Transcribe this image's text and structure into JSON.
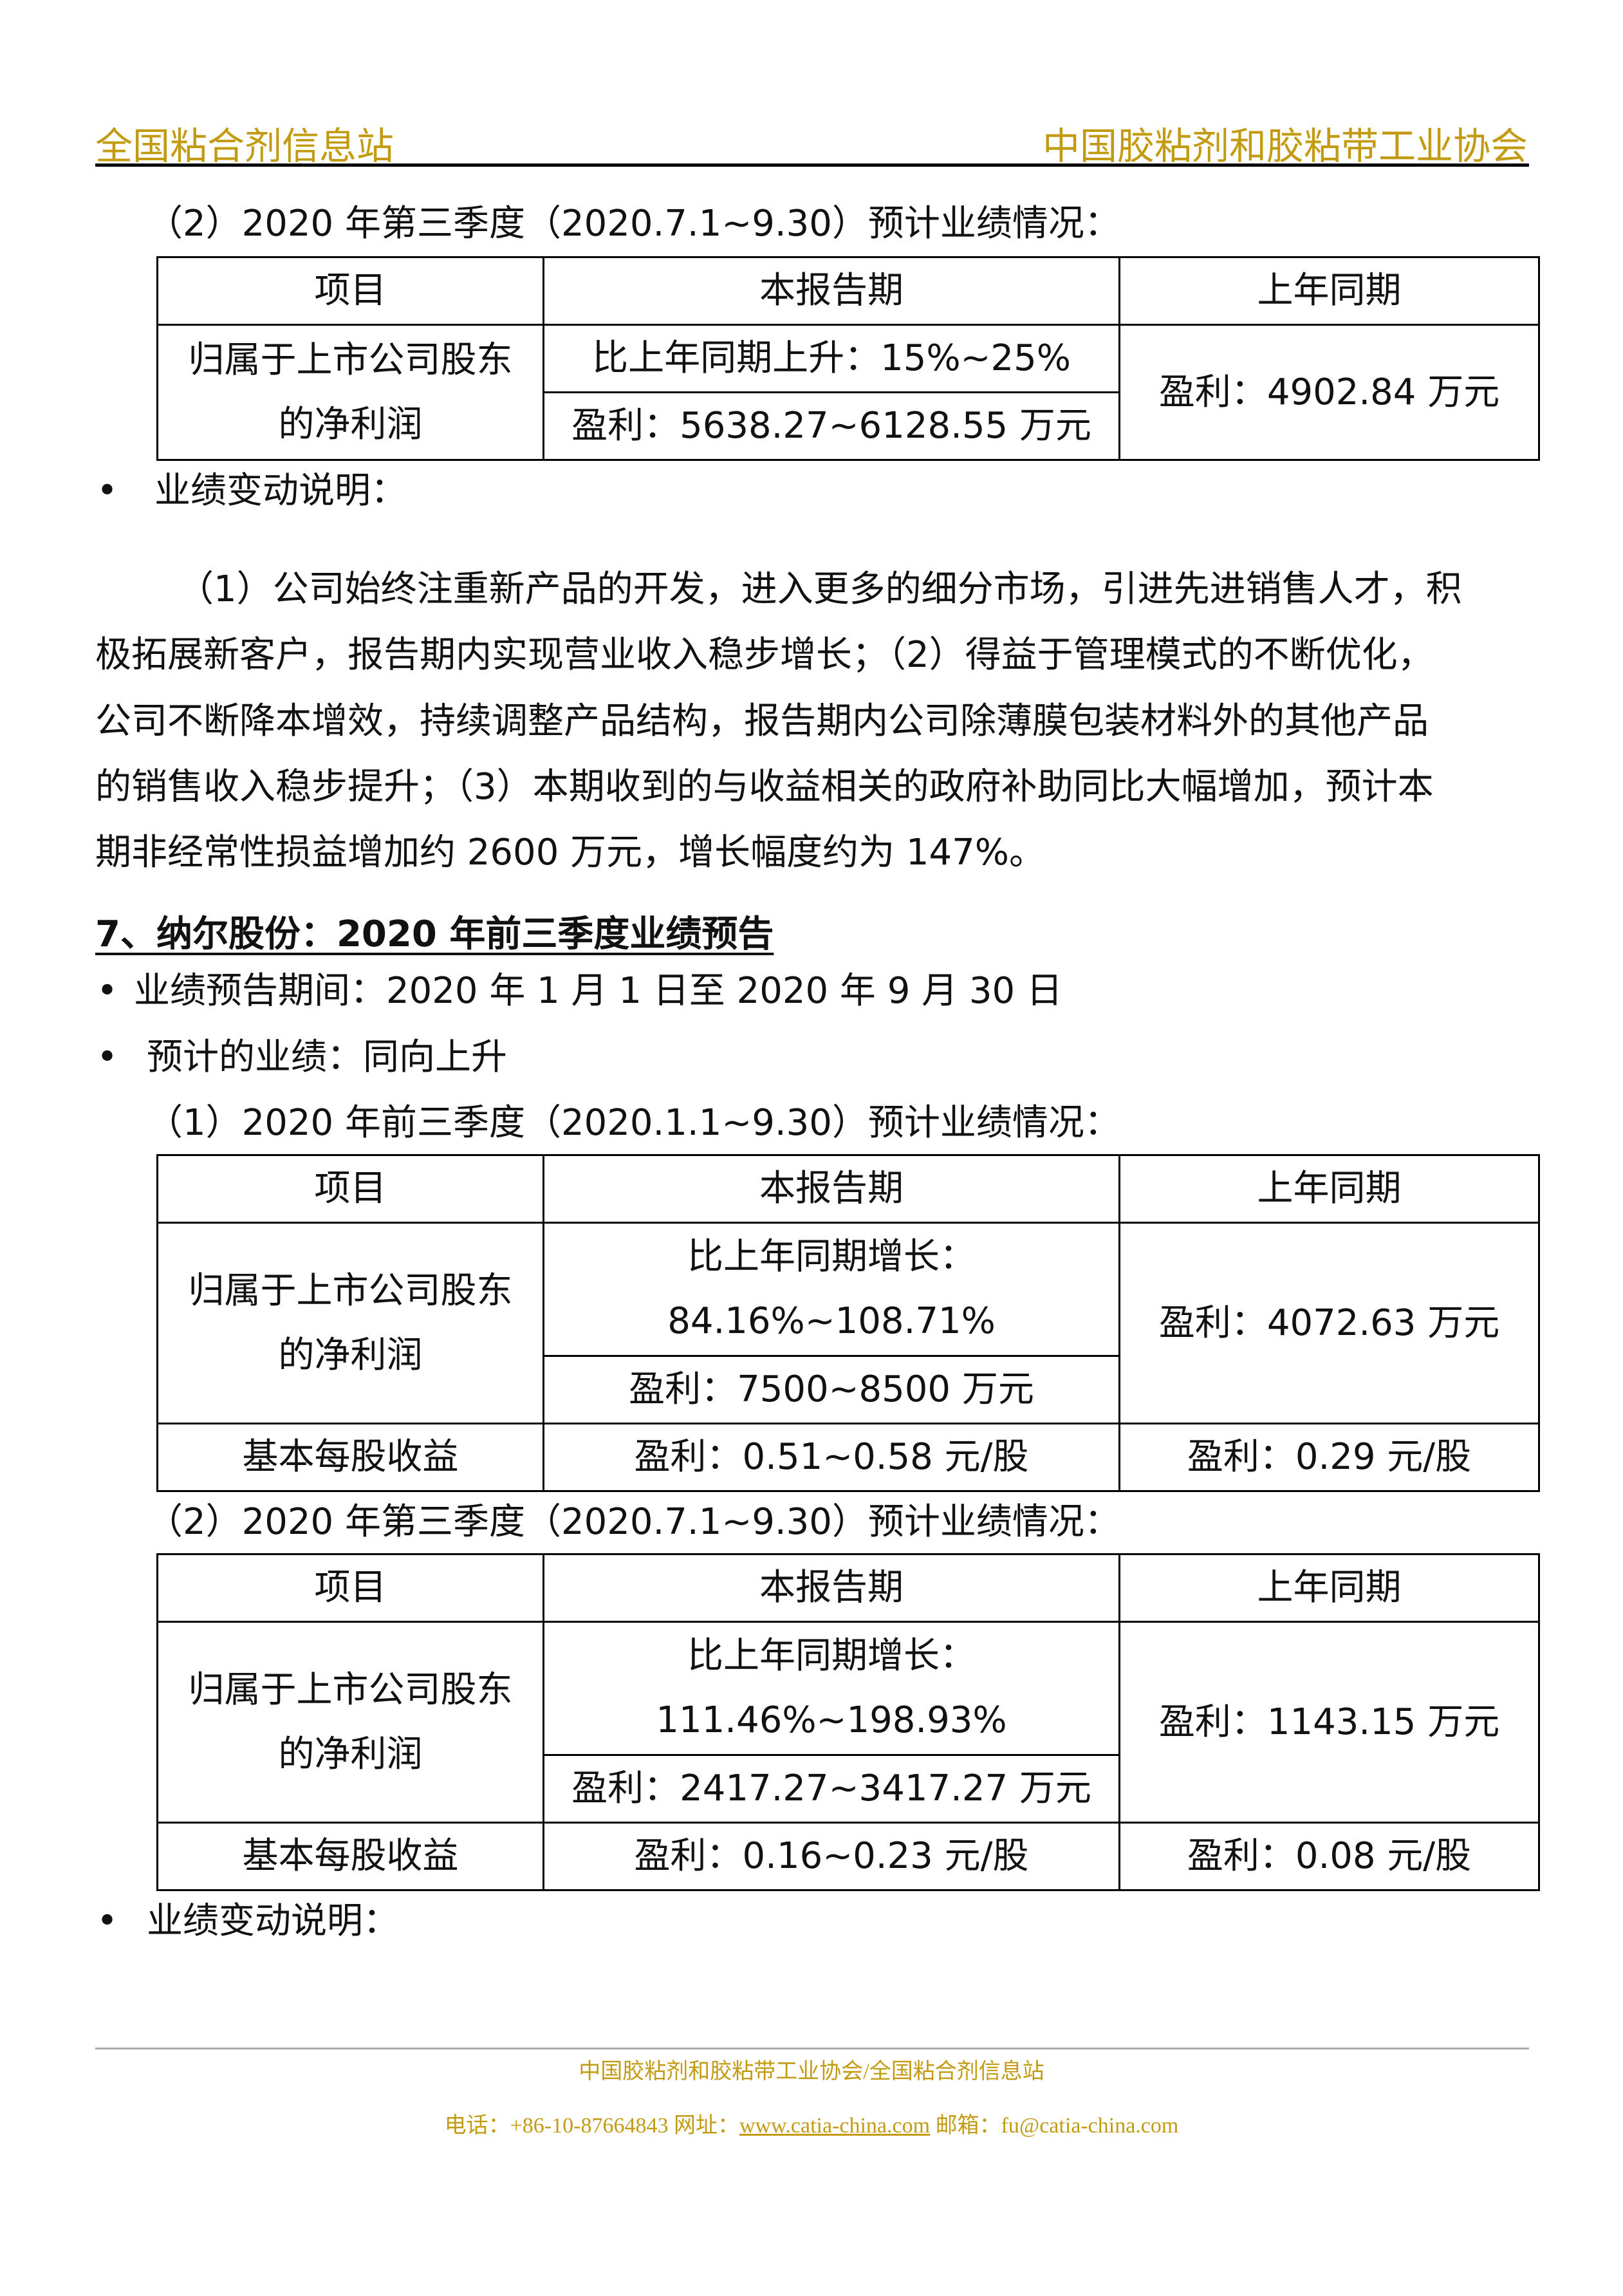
{
  "header": {
    "left": "全国粘合剂信息站",
    "right": "中国胶粘剂和胶粘带工业协会"
  },
  "section1": {
    "subtitle": "（2）2020 年第三季度（2020.7.1~9.30）预计业绩情况：",
    "table": {
      "headers": [
        "项目",
        "本报告期",
        "上年同期"
      ],
      "row_label_lines": [
        "归属于上市公司股东",
        "的净利润"
      ],
      "current_change": "比上年同期上升：15%~25%",
      "current_profit": "盈利：5638.27~6128.55 万元",
      "previous": "盈利：4902.84 万元"
    },
    "bullet": "业绩变动说明：",
    "paragraph_lines": [
      "（1）公司始终注重新产品的开发，进入更多的细分市场，引进先进销售人才，积",
      "极拓展新客户，报告期内实现营业收入稳步增长；（2）得益于管理模式的不断优化，",
      "公司不断降本增效，持续调整产品结构，报告期内公司除薄膜包装材料外的其他产品",
      "的销售收入稳步提升；（3）本期收到的与收益相关的政府补助同比大幅增加，预计本",
      "期非经常性损益增加约 2600 万元，增长幅度约为 147%。"
    ]
  },
  "section7": {
    "heading": "7、纳尔股份：2020 年前三季度业绩预告",
    "bullets": [
      "业绩预告期间：2020 年 1 月 1 日至 2020 年 9 月 30 日",
      "预计的业绩：同向上升"
    ],
    "sub1": "（1）2020 年前三季度（2020.1.1~9.30）预计业绩情况：",
    "table1": {
      "headers": [
        "项目",
        "本报告期",
        "上年同期"
      ],
      "row_label_lines": [
        "归属于上市公司股东",
        "的净利润"
      ],
      "change_lines": [
        "比上年同期增长：",
        "84.16%~108.71%"
      ],
      "current_profit": "盈利：7500~8500 万元",
      "previous": "盈利：4072.63 万元",
      "eps_label": "基本每股收益",
      "eps_current": "盈利：0.51~0.58 元/股",
      "eps_previous": "盈利：0.29 元/股"
    },
    "sub2": "（2）2020 年第三季度（2020.7.1~9.30）预计业绩情况：",
    "table2": {
      "headers": [
        "项目",
        "本报告期",
        "上年同期"
      ],
      "row_label_lines": [
        "归属于上市公司股东",
        "的净利润"
      ],
      "change_lines": [
        "比上年同期增长：",
        "111.46%~198.93%"
      ],
      "current_profit": "盈利：2417.27~3417.27 万元",
      "previous": "盈利：1143.15 万元",
      "eps_label": "基本每股收益",
      "eps_current": "盈利：0.16~0.23 元/股",
      "eps_previous": "盈利：0.08 元/股"
    },
    "bullet_end": "业绩变动说明："
  },
  "footer": {
    "line1": "中国胶粘剂和胶粘带工业协会/全国粘合剂信息站",
    "phone": "电话：+86-10-87664843 网址：",
    "website": "www.catia-china.com",
    "email": " 邮箱：fu@catia-china.com"
  },
  "colors": {
    "brand_gold": "#C39B12"
  }
}
